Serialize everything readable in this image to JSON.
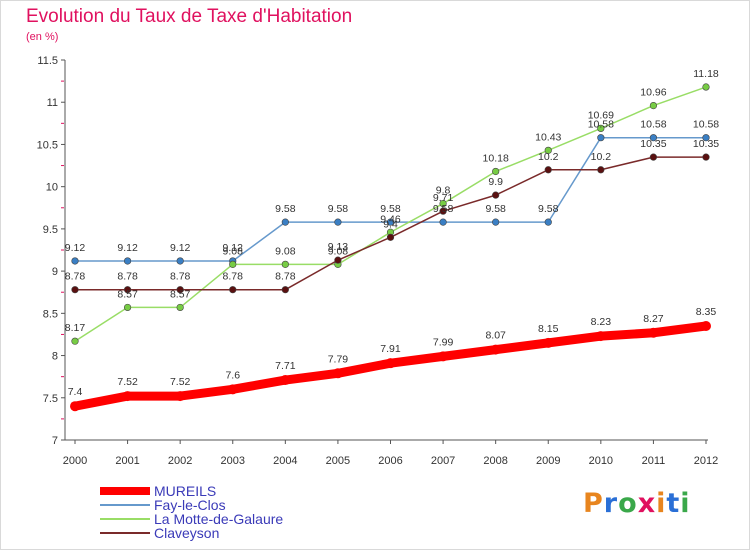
{
  "title": "Evolution du Taux de Taxe d'Habitation",
  "subtitle": "(en %)",
  "logo": {
    "text": "Proxiti",
    "letter_colors": [
      "#e8851e",
      "#2a6fd6",
      "#3aa84a",
      "#e0115f",
      "#e8851e",
      "#2a6fd6",
      "#3aa84a"
    ]
  },
  "chart_data": {
    "type": "line",
    "x": [
      2000,
      2001,
      2002,
      2003,
      2004,
      2005,
      2006,
      2007,
      2008,
      2009,
      2010,
      2011,
      2012
    ],
    "ylim": [
      7,
      11.5
    ],
    "yticks": [
      "7",
      "7.5",
      "8",
      "8.5",
      "9",
      "9.5",
      "10",
      "10.5",
      "11",
      "11.5"
    ],
    "series": [
      {
        "name": "MUREILS",
        "color": "#ff0000",
        "marker": "#ff0000",
        "values": [
          7.4,
          7.52,
          7.52,
          7.6,
          7.71,
          7.79,
          7.91,
          7.99,
          8.07,
          8.15,
          8.23,
          8.27,
          8.35
        ],
        "labels": [
          "7.4",
          "7.52",
          "7.52",
          "7.6",
          "7.71",
          "7.79",
          "7.91",
          "7.99",
          "8.07",
          "8.15",
          "8.23",
          "8.27",
          "8.35"
        ]
      },
      {
        "name": "Fay-le-Clos",
        "color": "#6699cc",
        "marker": "#3a7fc4",
        "values": [
          9.12,
          9.12,
          9.12,
          9.12,
          9.58,
          9.58,
          9.58,
          9.58,
          9.58,
          9.58,
          10.58,
          10.58,
          10.58
        ],
        "labels": [
          "9.12",
          "9.12",
          "9.12",
          "9.12",
          "9.58",
          "9.58",
          "9.58",
          "9.58",
          "9.58",
          "9.58",
          "10.58",
          "10.58",
          "10.58"
        ]
      },
      {
        "name": "La Motte-de-Galaure",
        "color": "#99dd66",
        "marker": "#77cc44",
        "values": [
          8.17,
          8.57,
          8.57,
          9.08,
          9.08,
          9.08,
          9.46,
          9.8,
          10.18,
          10.43,
          10.69,
          10.96,
          11.18
        ],
        "labels": [
          "8.17",
          "8.57",
          "8.57",
          "9.08",
          "9.08",
          "9.08",
          "9.46",
          "9.8",
          "10.18",
          "10.43",
          "10.69",
          "10.96",
          "11.18"
        ]
      },
      {
        "name": "Claveyson",
        "color": "#7a2a2a",
        "marker": "#5a1010",
        "values": [
          8.78,
          8.78,
          8.78,
          8.78,
          8.78,
          9.13,
          9.4,
          9.71,
          9.9,
          10.2,
          10.2,
          10.35,
          10.35
        ],
        "labels": [
          "8.78",
          "8.78",
          "8.78",
          "8.78",
          "8.78",
          "9.13",
          "9.4",
          "9.71",
          "9.9",
          "10.2",
          "10.2",
          "10.35",
          "10.35"
        ]
      }
    ]
  }
}
